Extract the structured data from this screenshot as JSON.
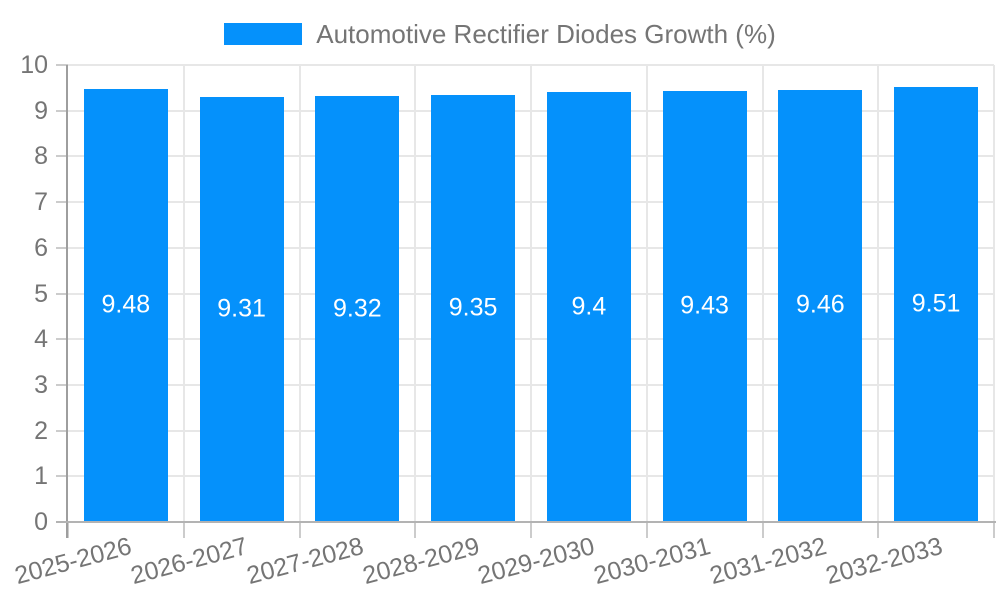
{
  "chart_data": {
    "type": "bar",
    "title": "Automotive Rectifier Diodes Growth (%)",
    "categories": [
      "2025-2026",
      "2026-2027",
      "2027-2028",
      "2028-2029",
      "2029-2030",
      "2030-2031",
      "2031-2032",
      "2032-2033"
    ],
    "series": [
      {
        "name": "Automotive Rectifier Diodes Growth (%)",
        "values": [
          9.48,
          9.31,
          9.32,
          9.35,
          9.4,
          9.43,
          9.46,
          9.51
        ],
        "value_labels": [
          "9.48",
          "9.31",
          "9.32",
          "9.35",
          "9.4",
          "9.43",
          "9.46",
          "9.51"
        ]
      }
    ],
    "xlabel": "",
    "ylabel": "",
    "ylim": [
      0,
      10
    ],
    "y_ticks": [
      0,
      1,
      2,
      3,
      4,
      5,
      6,
      7,
      8,
      9,
      10
    ],
    "grid": true,
    "legend_position": "top",
    "x_tick_rotation_deg": -15,
    "colors": {
      "bar": "#0591fb",
      "text": "#757575",
      "bar_label": "#ffffff",
      "gridline": "#e7e7e7",
      "x_axis": "#b3b3b3",
      "y_axis": "#9e9e9e",
      "tick": "#cccccc"
    }
  }
}
